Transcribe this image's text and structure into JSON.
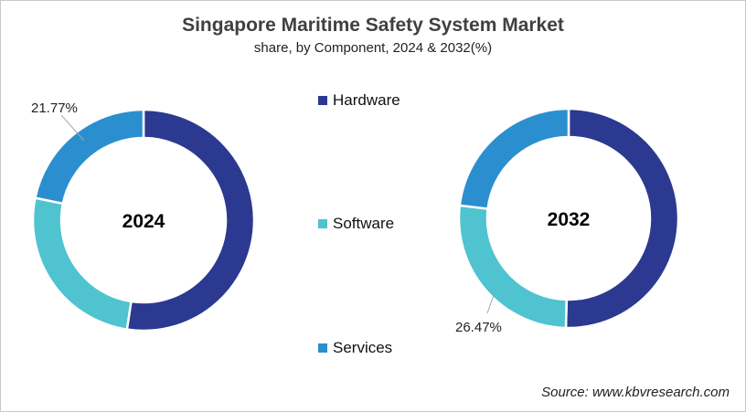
{
  "chart_data": [
    {
      "type": "pie",
      "variant": "donut",
      "title": "Singapore Maritime Safety System Market",
      "subtitle": "share, by Component, 2024 & 2032(%)",
      "center_label": "2024",
      "categories": [
        "Hardware",
        "Software",
        "Services"
      ],
      "values": [
        52.4,
        25.83,
        21.77
      ],
      "labeled_values": {
        "Services": "21.77%"
      },
      "colors": [
        "#2b3990",
        "#4fc3d0",
        "#2b8fcf"
      ],
      "start_angle": "top, clockwise"
    },
    {
      "type": "pie",
      "variant": "donut",
      "title": "Singapore Maritime Safety System Market",
      "subtitle": "share, by Component, 2024 & 2032(%)",
      "center_label": "2032",
      "categories": [
        "Hardware",
        "Software",
        "Services"
      ],
      "values": [
        50.4,
        26.47,
        23.13
      ],
      "labeled_values": {
        "Software": "26.47%"
      },
      "colors": [
        "#2b3990",
        "#4fc3d0",
        "#2b8fcf"
      ],
      "start_angle": "top, clockwise"
    }
  ],
  "header": {
    "title": "Singapore Maritime Safety System Market",
    "subtitle": "share, by Component, 2024 & 2032(%)"
  },
  "legend": {
    "items": [
      {
        "label": "Hardware",
        "color": "#2b3990"
      },
      {
        "label": "Software",
        "color": "#4fc3d0"
      },
      {
        "label": "Services",
        "color": "#2b8fcf"
      }
    ]
  },
  "annotations": {
    "donut_2024_label": "21.77%",
    "donut_2032_label": "26.47%"
  },
  "footer": {
    "source": "Source: www.kbvresearch.com"
  }
}
